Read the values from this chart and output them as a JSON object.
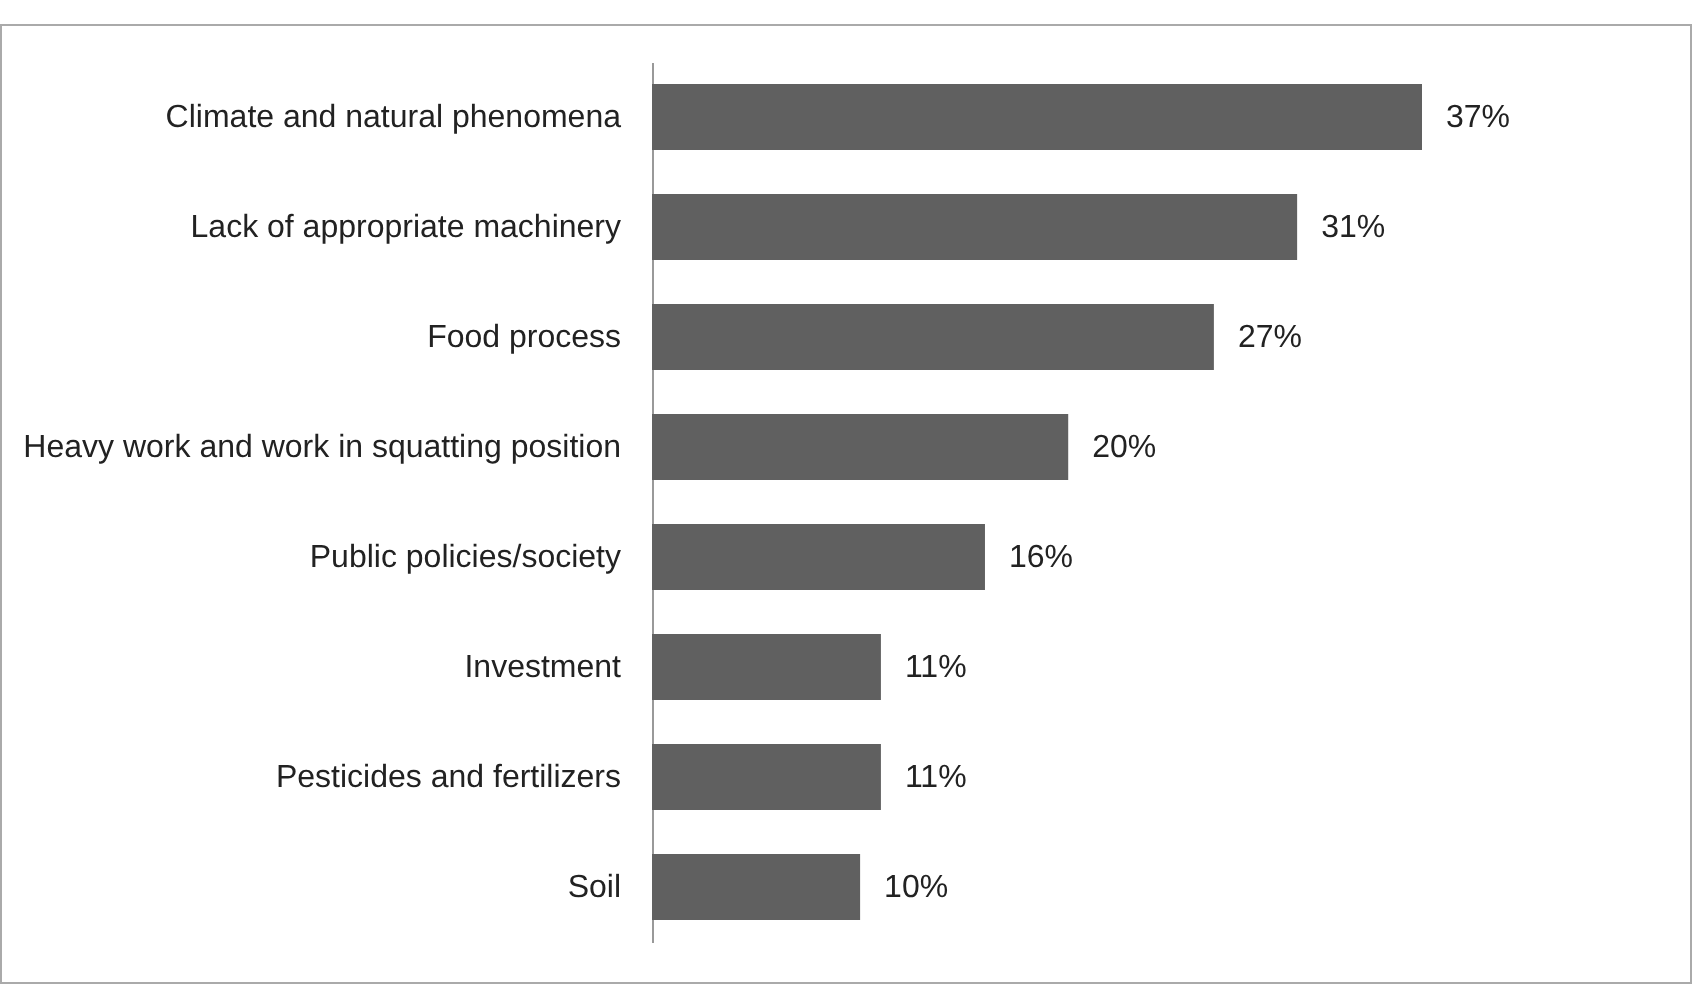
{
  "chart_data": {
    "type": "bar",
    "orientation": "horizontal",
    "categories": [
      "Climate and natural phenomena",
      "Lack of appropriate machinery",
      "Food process",
      "Heavy work and work in squatting position",
      "Public policies/society",
      "Investment",
      "Pesticides and fertilizers",
      "Soil"
    ],
    "values": [
      37,
      31,
      27,
      20,
      16,
      11,
      11,
      10
    ],
    "value_labels": [
      "37%",
      "31%",
      "27%",
      "20%",
      "16%",
      "11%",
      "11%",
      "10%"
    ],
    "color": "#606060"
  }
}
